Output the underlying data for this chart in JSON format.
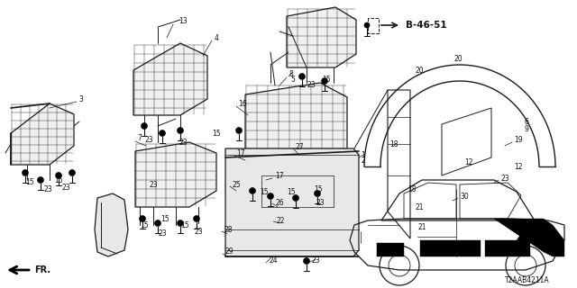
{
  "diagram_code": "T2AAB4211A",
  "background_color": "#ffffff",
  "line_color": "#1a1a1a",
  "figsize": [
    6.4,
    3.2
  ],
  "dpi": 100,
  "ref_label": "B-46-51",
  "fastener_color": "#222222",
  "text_color": "#111111"
}
